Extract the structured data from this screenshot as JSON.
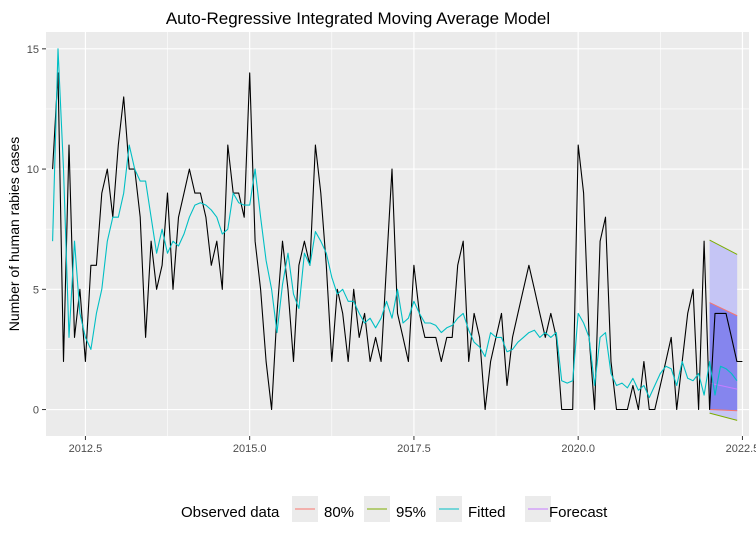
{
  "chart_data": {
    "type": "line",
    "title": "Auto-Regressive Integrated Moving Average Model",
    "xlabel": "",
    "ylabel": "Number of human rabies cases",
    "xlim": [
      2011.9,
      2022.6
    ],
    "ylim": [
      -1.1,
      15.7
    ],
    "x_ticks": [
      2012.5,
      2015.0,
      2017.5,
      2020.0,
      2022.5
    ],
    "x_tick_labels": [
      "2012.5",
      "2015.0",
      "2017.5",
      "2020.0",
      "2022.5"
    ],
    "y_ticks": [
      0,
      5,
      10,
      15
    ],
    "y_tick_labels": [
      "0",
      "5",
      "10",
      "15"
    ],
    "grid": true,
    "legend_position": "bottom",
    "legend": {
      "title": "Observed data",
      "entries": [
        {
          "label": "80%",
          "color": "#F8766D"
        },
        {
          "label": "95%",
          "color": "#7CAE00"
        },
        {
          "label": "Fitted",
          "color": "#00BFC4"
        },
        {
          "label": "Forecast",
          "color": "#C77CFF"
        }
      ]
    },
    "colors": {
      "observed": "#000000",
      "fitted": "#00BFC4",
      "band95": "#C5C5F5",
      "band80": "#8585EE",
      "forecast_mean": "#C77CFF",
      "panel": "#EBEBEB",
      "grid": "#FFFFFF"
    },
    "series": [
      {
        "name": "Observed data",
        "start": 2012.0,
        "step": 0.08333,
        "values": [
          10,
          14,
          2,
          11,
          3,
          5,
          2,
          6,
          6,
          9,
          10,
          8,
          11,
          13,
          10,
          10,
          8,
          3,
          7,
          5,
          6,
          9,
          5,
          8,
          9,
          10,
          9,
          9,
          8,
          6,
          7,
          5,
          11,
          9,
          9,
          8,
          14,
          7,
          5,
          2,
          0,
          4,
          7,
          5,
          2,
          6,
          7,
          6,
          11,
          9,
          6,
          2,
          5,
          4,
          2,
          5,
          3,
          4,
          2,
          3,
          2,
          6,
          10,
          4,
          3,
          2,
          6,
          4,
          3,
          3,
          3,
          2,
          3,
          3,
          6,
          7,
          2,
          4,
          3,
          0,
          2,
          3,
          4,
          1,
          3,
          4,
          5,
          6,
          5,
          4,
          3,
          4,
          3,
          0,
          0,
          0,
          11,
          9,
          3,
          0,
          7,
          8,
          2,
          0,
          0,
          0,
          1,
          0,
          2,
          0,
          0,
          1,
          2,
          3,
          0,
          2,
          4,
          5,
          0,
          7,
          0,
          4,
          4,
          4,
          3,
          2,
          2
        ]
      },
      {
        "name": "Fitted",
        "start": 2012.0,
        "step": 0.08333,
        "values": [
          7,
          15,
          10,
          3,
          7,
          4,
          3,
          2.5,
          4,
          5,
          7,
          8,
          8,
          9,
          11,
          10,
          9.5,
          9.5,
          8,
          6.5,
          7.5,
          6.5,
          7,
          6.8,
          7.3,
          8,
          8.5,
          8.6,
          8.5,
          8.3,
          8,
          7.3,
          7.5,
          9,
          8.6,
          8.5,
          8.5,
          10,
          8,
          6.2,
          5,
          3.2,
          5.2,
          6.5,
          4.8,
          4.2,
          6.5,
          6,
          7.4,
          7,
          6.5,
          5.5,
          4.8,
          5,
          4.5,
          4.5,
          4,
          3.6,
          3.8,
          3.4,
          3.8,
          4.5,
          3.8,
          5,
          3.6,
          3.8,
          4.5,
          4,
          3.6,
          3.6,
          3.5,
          3.2,
          3.4,
          3.5,
          3.8,
          4,
          3.3,
          2.8,
          2.6,
          2.2,
          3.2,
          3,
          3,
          2.4,
          2.5,
          2.8,
          3,
          3.2,
          3.3,
          3,
          3.2,
          3,
          3.2,
          1.2,
          1.1,
          1.2,
          4,
          3.6,
          3,
          1,
          3,
          3.2,
          1.5,
          1,
          1.1,
          0.9,
          1.3,
          0.8,
          1,
          0.5,
          1,
          1.5,
          1.8,
          1.7,
          1,
          2,
          1.3,
          1.2,
          1.5,
          0.6,
          2,
          0.6,
          1.8,
          1.7,
          1.5,
          1.2
        ]
      }
    ],
    "forecast": {
      "x_start": 2022.0,
      "x_end": 2022.42,
      "mean": [
        1.1,
        0.85
      ],
      "lo80": [
        0.0,
        -0.05
      ],
      "hi80": [
        4.45,
        3.9
      ],
      "lo95": [
        -0.15,
        -0.45
      ],
      "hi95": [
        7.05,
        6.45
      ]
    }
  }
}
